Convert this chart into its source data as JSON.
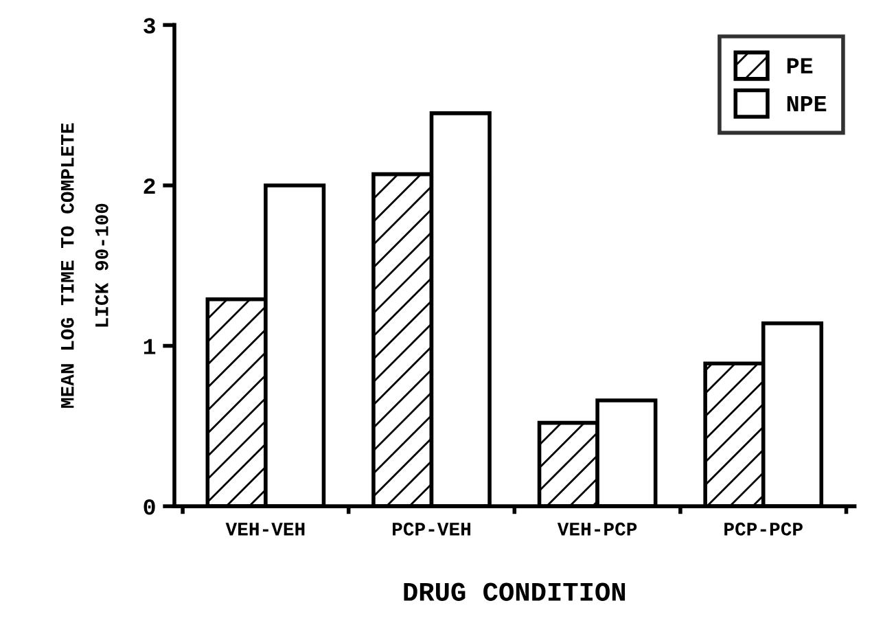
{
  "chart_data": {
    "type": "bar",
    "xlabel": "DRUG CONDITION",
    "ylabel": "MEAN LOG TIME TO COMPLETE\nLICK 90-100",
    "categories": [
      "VEH-VEH",
      "PCP-VEH",
      "VEH-PCP",
      "PCP-PCP"
    ],
    "series": [
      {
        "name": "PE",
        "color": "#000000",
        "values": [
          1.29,
          2.07,
          0.52,
          0.89
        ]
      },
      {
        "name": "NPE",
        "color": "#ffffff",
        "values": [
          2.0,
          2.45,
          0.66,
          1.14
        ]
      }
    ],
    "ylim": [
      0,
      3
    ],
    "yticks": [
      0,
      1,
      2,
      3
    ],
    "grid": false,
    "legend": "top right"
  }
}
